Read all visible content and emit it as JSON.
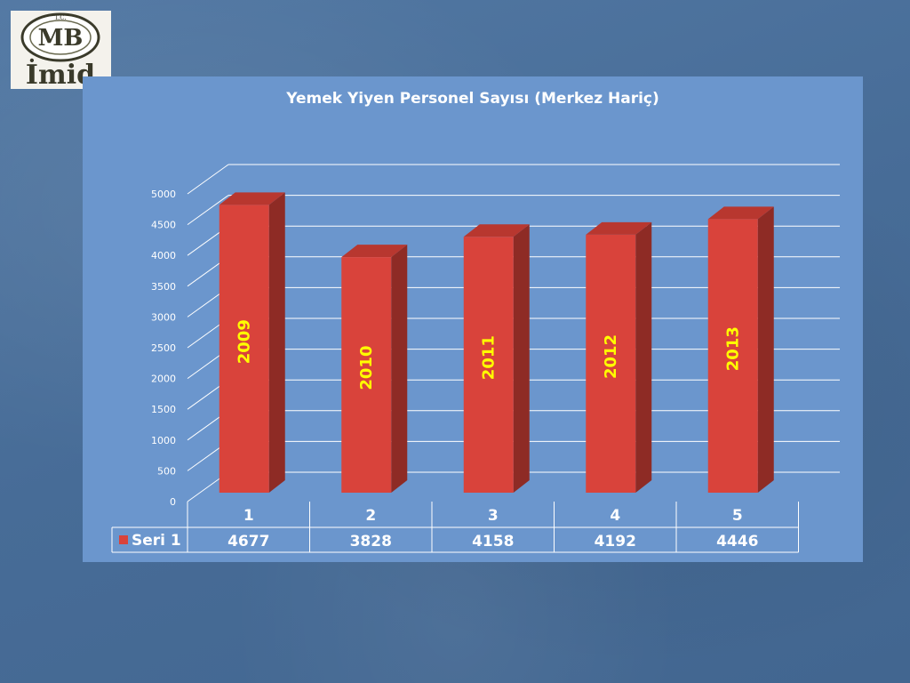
{
  "logo": {
    "icon": "ministry-emblem-icon",
    "text_top": "T.C.",
    "text_main": "MB",
    "text_side": "İmid"
  },
  "colors": {
    "bar_front": "#d9433b",
    "bar_side": "#8e2b25",
    "bar_top": "#b8372f",
    "label": "#ffff00",
    "panel": "#6b96cd",
    "grid": "#ffffff"
  },
  "chart_data": {
    "type": "bar",
    "title": "Yemek Yiyen Personel Sayısı (Merkez Hariç)",
    "categories": [
      "1",
      "2",
      "3",
      "4",
      "5"
    ],
    "series": [
      {
        "name": "Seri 1",
        "values": [
          4677,
          3828,
          4158,
          4192,
          4446
        ],
        "bar_labels": [
          "2009",
          "2010",
          "2011",
          "2012",
          "2013"
        ]
      }
    ],
    "ylim": [
      0,
      5000
    ],
    "yticks": [
      "0",
      "500",
      "1000",
      "1500",
      "2000",
      "2500",
      "3000",
      "3500",
      "4000",
      "4500",
      "5000"
    ],
    "grid": true,
    "data_table": true,
    "legend": "data-table"
  }
}
